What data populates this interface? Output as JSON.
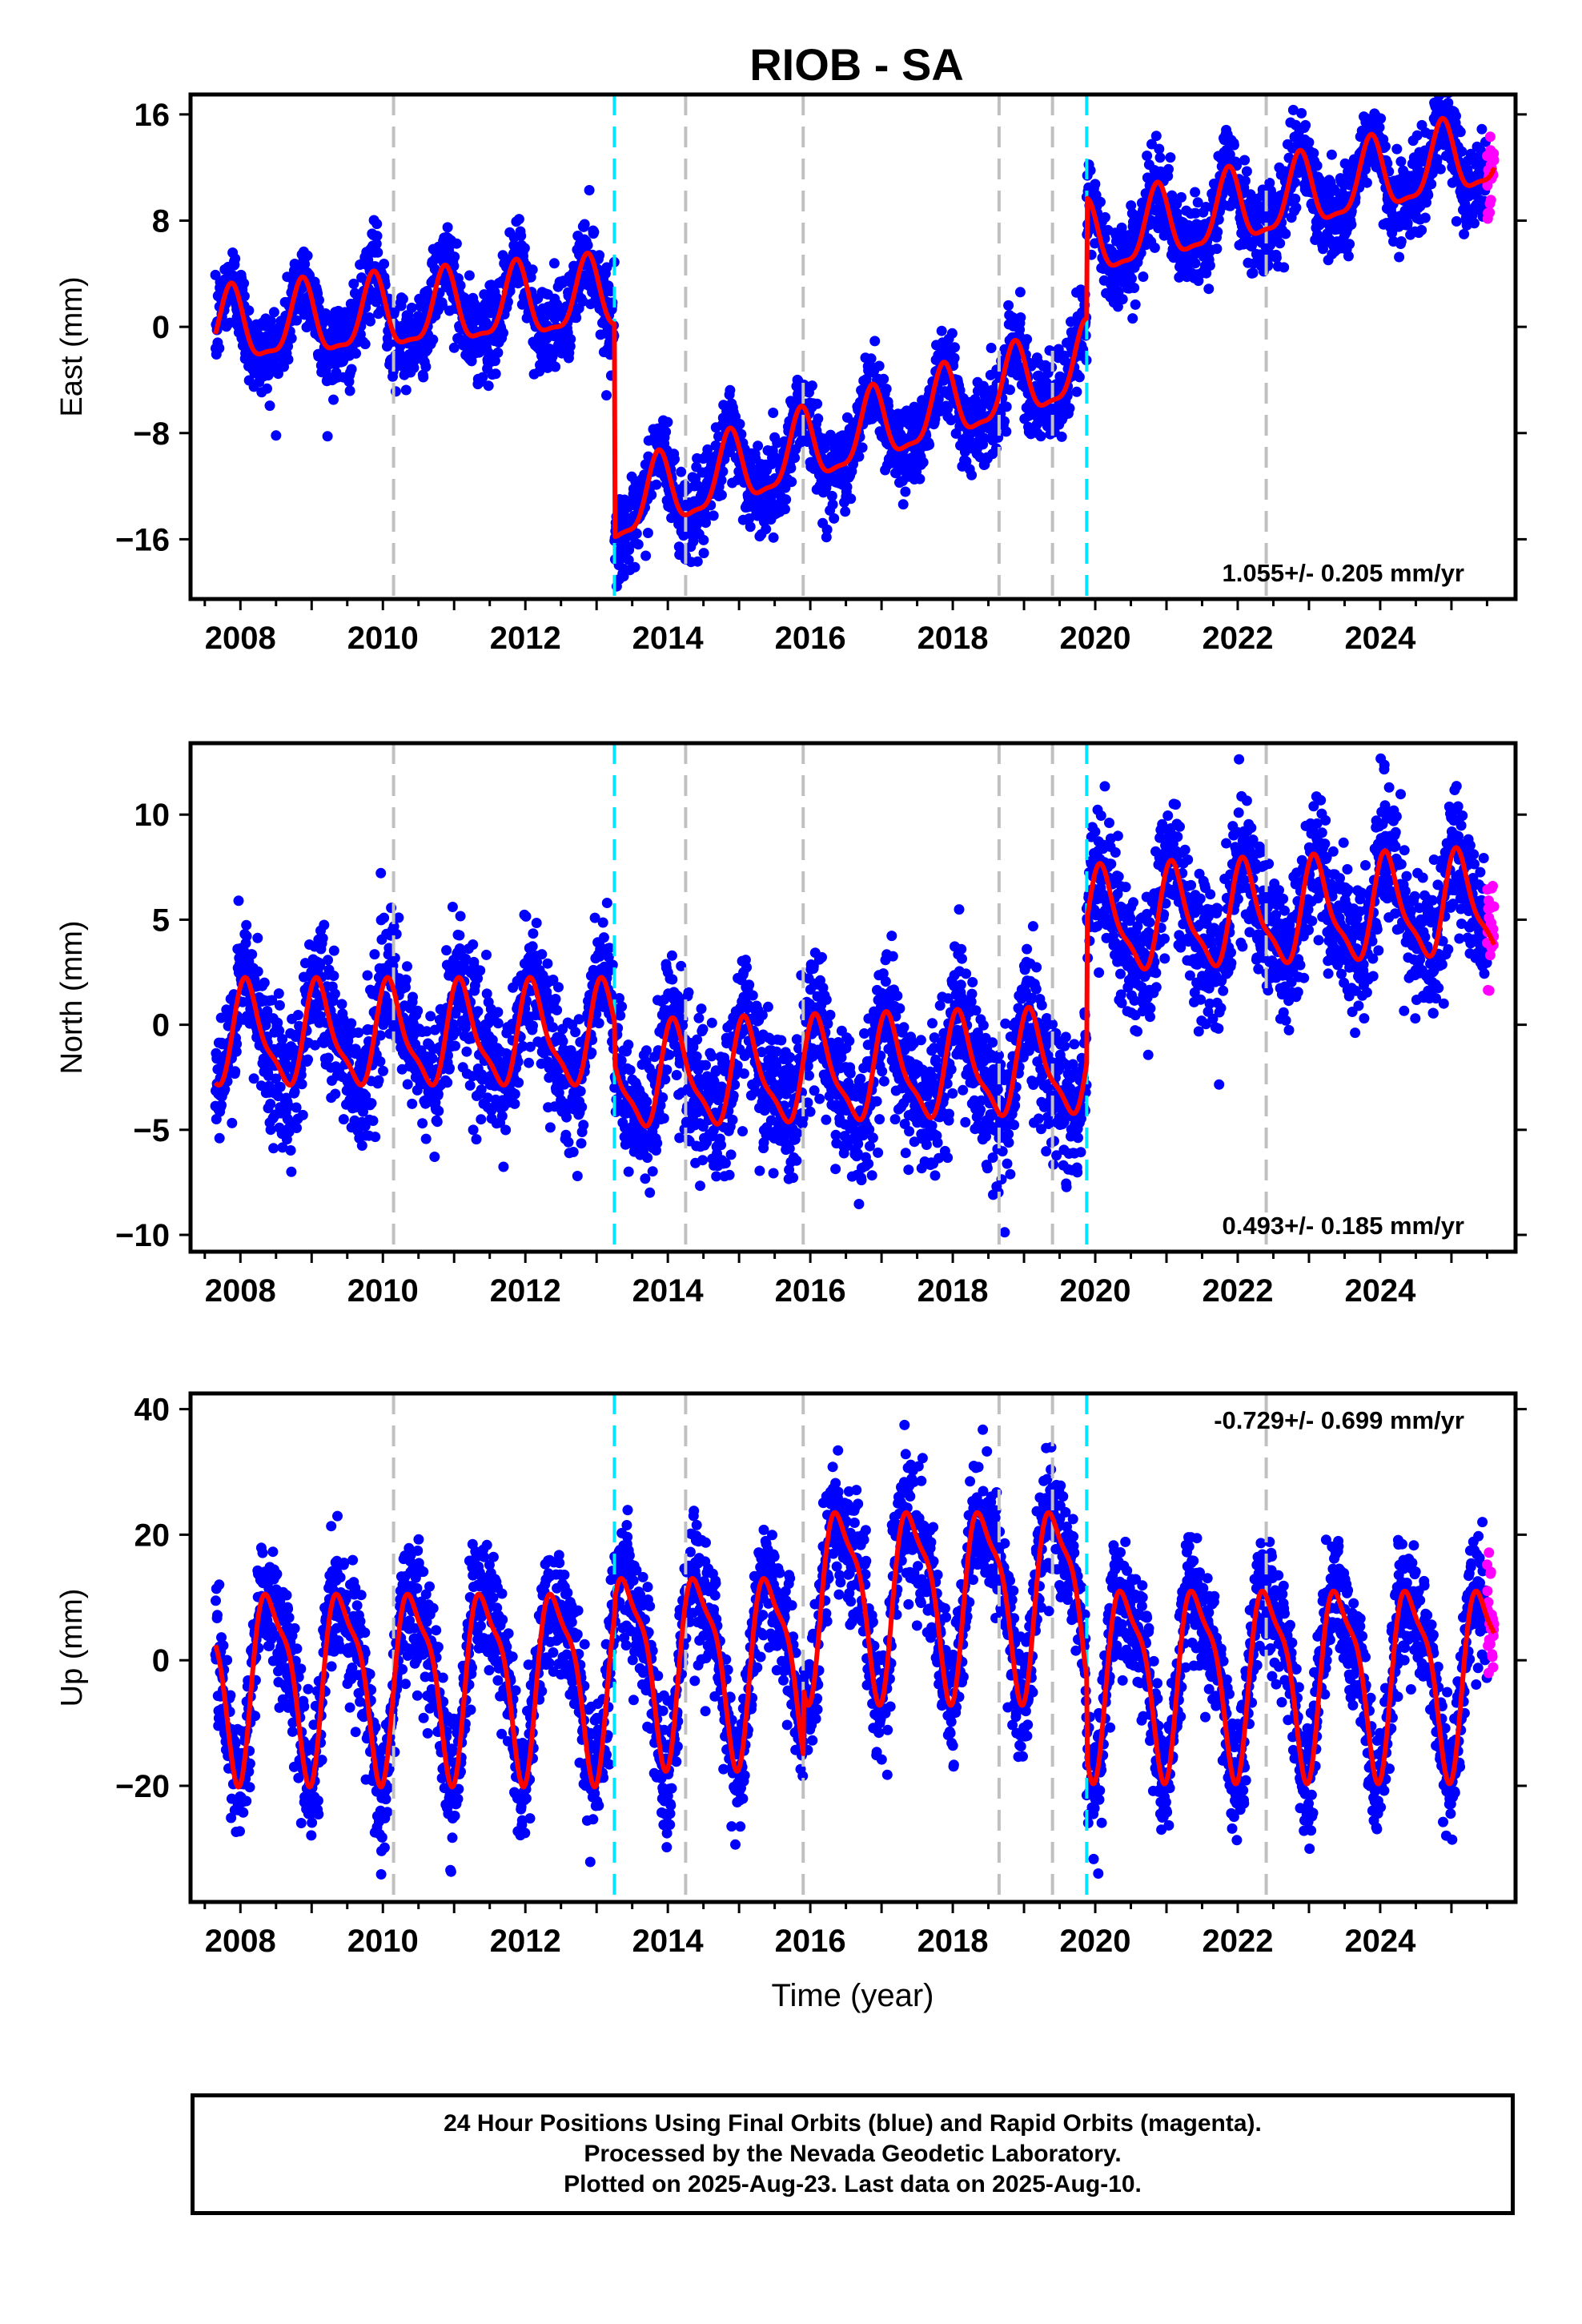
{
  "title": "RIOB - SA",
  "xlabel": "Time (year)",
  "footer": {
    "line1": "24 Hour Positions Using Final Orbits (blue) and Rapid Orbits (magenta).",
    "line2": "Processed by the Nevada Geodetic Laboratory.",
    "line3": "Plotted on 2025-Aug-23. Last data on 2025-Aug-10."
  },
  "colors": {
    "final_orbits": "#0000ff",
    "rapid_orbits": "#ff00ff",
    "model": "#ff0000",
    "equipment_change": "#c0c0c0",
    "earthquake": "#00e5ff"
  },
  "chart_data": [
    {
      "type": "scatter",
      "component": "east",
      "ylabel": "East (mm)",
      "rate_text": "1.055+/- 0.205 mm/yr",
      "xlim": [
        2007.3,
        2025.9
      ],
      "ylim": [
        -20.5,
        17.5
      ],
      "xticks": [
        2008,
        2010,
        2012,
        2014,
        2016,
        2018,
        2020,
        2022,
        2024
      ],
      "yticks": [
        16,
        8,
        0,
        -8,
        -16
      ],
      "grid": false,
      "equipment_changes": [
        2010.15,
        2014.25,
        2015.9,
        2018.65,
        2019.4,
        2022.4
      ],
      "earthquakes": [
        2013.25,
        2019.88
      ],
      "data_start": 2007.65,
      "data_end": 2025.6,
      "rapid_start": 2025.5,
      "model": {
        "segments": [
          {
            "x0": 2007.65,
            "x1": 2013.25,
            "offset": -0.3,
            "slope": 0.45
          },
          {
            "x0": 2013.25,
            "x1": 2019.88,
            "offset": -13.8,
            "slope": 1.65
          },
          {
            "x0": 2019.88,
            "x1": 2025.6,
            "offset": 6.2,
            "slope": 1.2
          }
        ],
        "seasonal_amplitude": 2.7,
        "seasonal_phase": 2.4
      },
      "scatter_sigma": 1.6
    },
    {
      "type": "scatter",
      "component": "north",
      "ylabel": "North (mm)",
      "rate_text": "0.493+/- 0.185 mm/yr",
      "xlim": [
        2007.3,
        2025.9
      ],
      "ylim": [
        -10.8,
        13.4
      ],
      "xticks": [
        2008,
        2010,
        2012,
        2014,
        2016,
        2018,
        2020,
        2022,
        2024
      ],
      "yticks": [
        10,
        5,
        0,
        -5,
        -10
      ],
      "grid": false,
      "equipment_changes": [
        2010.15,
        2014.25,
        2015.9,
        2018.65,
        2019.4,
        2022.4
      ],
      "earthquakes": [
        2013.25,
        2019.88
      ],
      "data_start": 2007.65,
      "data_end": 2025.6,
      "rapid_start": 2025.5,
      "model": {
        "segments": [
          {
            "x0": 2007.65,
            "x1": 2013.25,
            "offset": -0.6,
            "slope": 0.0
          },
          {
            "x0": 2013.25,
            "x1": 2019.88,
            "offset": -2.6,
            "slope": 0.1
          },
          {
            "x0": 2019.88,
            "x1": 2025.6,
            "offset": 4.8,
            "slope": 0.15
          }
        ],
        "seasonal_amplitude": 2.3,
        "seasonal_phase": 0.9
      },
      "scatter_sigma": 1.6
    },
    {
      "type": "scatter",
      "component": "up",
      "ylabel": "Up (mm)",
      "rate_text": "-0.729+/- 0.699 mm/yr",
      "xlim": [
        2007.3,
        2025.9
      ],
      "ylim": [
        -38.5,
        42.5
      ],
      "xticks": [
        2008,
        2010,
        2012,
        2014,
        2016,
        2018,
        2020,
        2022,
        2024
      ],
      "yticks": [
        40,
        20,
        0,
        -20
      ],
      "grid": false,
      "equipment_changes": [
        2010.15,
        2014.25,
        2015.9,
        2018.65,
        2019.4,
        2022.4
      ],
      "earthquakes": [
        2013.25,
        2019.88
      ],
      "data_start": 2007.65,
      "data_end": 2025.6,
      "rapid_start": 2025.5,
      "model": {
        "segments": [
          {
            "x0": 2007.65,
            "x1": 2013.25,
            "offset": -2.5,
            "slope": 0.0
          },
          {
            "x0": 2013.25,
            "x1": 2015.9,
            "offset": 0.0,
            "slope": 0.0
          },
          {
            "x0": 2015.9,
            "x1": 2019.88,
            "offset": 10.5,
            "slope": 0.0
          },
          {
            "x0": 2019.88,
            "x1": 2025.6,
            "offset": -2.0,
            "slope": 0.0
          }
        ],
        "seasonal_amplitude": 14.0,
        "seasonal_phase": -1.2
      },
      "scatter_sigma": 5.0
    }
  ]
}
